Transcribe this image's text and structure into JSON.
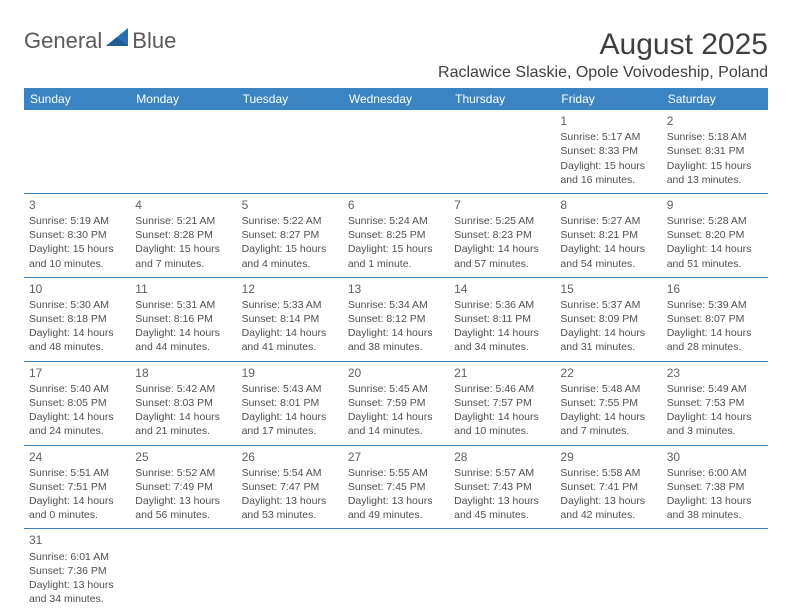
{
  "logo": {
    "part1": "General",
    "part2": "Blue"
  },
  "title": "August 2025",
  "location": "Raclawice Slaskie, Opole Voivodeship, Poland",
  "colors": {
    "header_bg": "#3b84c4",
    "header_fg": "#ffffff",
    "text": "#404040"
  },
  "weekdays": [
    "Sunday",
    "Monday",
    "Tuesday",
    "Wednesday",
    "Thursday",
    "Friday",
    "Saturday"
  ],
  "weeks": [
    [
      null,
      null,
      null,
      null,
      null,
      {
        "n": "1",
        "sr": "Sunrise: 5:17 AM",
        "ss": "Sunset: 8:33 PM",
        "d1": "Daylight: 15 hours",
        "d2": "and 16 minutes."
      },
      {
        "n": "2",
        "sr": "Sunrise: 5:18 AM",
        "ss": "Sunset: 8:31 PM",
        "d1": "Daylight: 15 hours",
        "d2": "and 13 minutes."
      }
    ],
    [
      {
        "n": "3",
        "sr": "Sunrise: 5:19 AM",
        "ss": "Sunset: 8:30 PM",
        "d1": "Daylight: 15 hours",
        "d2": "and 10 minutes."
      },
      {
        "n": "4",
        "sr": "Sunrise: 5:21 AM",
        "ss": "Sunset: 8:28 PM",
        "d1": "Daylight: 15 hours",
        "d2": "and 7 minutes."
      },
      {
        "n": "5",
        "sr": "Sunrise: 5:22 AM",
        "ss": "Sunset: 8:27 PM",
        "d1": "Daylight: 15 hours",
        "d2": "and 4 minutes."
      },
      {
        "n": "6",
        "sr": "Sunrise: 5:24 AM",
        "ss": "Sunset: 8:25 PM",
        "d1": "Daylight: 15 hours",
        "d2": "and 1 minute."
      },
      {
        "n": "7",
        "sr": "Sunrise: 5:25 AM",
        "ss": "Sunset: 8:23 PM",
        "d1": "Daylight: 14 hours",
        "d2": "and 57 minutes."
      },
      {
        "n": "8",
        "sr": "Sunrise: 5:27 AM",
        "ss": "Sunset: 8:21 PM",
        "d1": "Daylight: 14 hours",
        "d2": "and 54 minutes."
      },
      {
        "n": "9",
        "sr": "Sunrise: 5:28 AM",
        "ss": "Sunset: 8:20 PM",
        "d1": "Daylight: 14 hours",
        "d2": "and 51 minutes."
      }
    ],
    [
      {
        "n": "10",
        "sr": "Sunrise: 5:30 AM",
        "ss": "Sunset: 8:18 PM",
        "d1": "Daylight: 14 hours",
        "d2": "and 48 minutes."
      },
      {
        "n": "11",
        "sr": "Sunrise: 5:31 AM",
        "ss": "Sunset: 8:16 PM",
        "d1": "Daylight: 14 hours",
        "d2": "and 44 minutes."
      },
      {
        "n": "12",
        "sr": "Sunrise: 5:33 AM",
        "ss": "Sunset: 8:14 PM",
        "d1": "Daylight: 14 hours",
        "d2": "and 41 minutes."
      },
      {
        "n": "13",
        "sr": "Sunrise: 5:34 AM",
        "ss": "Sunset: 8:12 PM",
        "d1": "Daylight: 14 hours",
        "d2": "and 38 minutes."
      },
      {
        "n": "14",
        "sr": "Sunrise: 5:36 AM",
        "ss": "Sunset: 8:11 PM",
        "d1": "Daylight: 14 hours",
        "d2": "and 34 minutes."
      },
      {
        "n": "15",
        "sr": "Sunrise: 5:37 AM",
        "ss": "Sunset: 8:09 PM",
        "d1": "Daylight: 14 hours",
        "d2": "and 31 minutes."
      },
      {
        "n": "16",
        "sr": "Sunrise: 5:39 AM",
        "ss": "Sunset: 8:07 PM",
        "d1": "Daylight: 14 hours",
        "d2": "and 28 minutes."
      }
    ],
    [
      {
        "n": "17",
        "sr": "Sunrise: 5:40 AM",
        "ss": "Sunset: 8:05 PM",
        "d1": "Daylight: 14 hours",
        "d2": "and 24 minutes."
      },
      {
        "n": "18",
        "sr": "Sunrise: 5:42 AM",
        "ss": "Sunset: 8:03 PM",
        "d1": "Daylight: 14 hours",
        "d2": "and 21 minutes."
      },
      {
        "n": "19",
        "sr": "Sunrise: 5:43 AM",
        "ss": "Sunset: 8:01 PM",
        "d1": "Daylight: 14 hours",
        "d2": "and 17 minutes."
      },
      {
        "n": "20",
        "sr": "Sunrise: 5:45 AM",
        "ss": "Sunset: 7:59 PM",
        "d1": "Daylight: 14 hours",
        "d2": "and 14 minutes."
      },
      {
        "n": "21",
        "sr": "Sunrise: 5:46 AM",
        "ss": "Sunset: 7:57 PM",
        "d1": "Daylight: 14 hours",
        "d2": "and 10 minutes."
      },
      {
        "n": "22",
        "sr": "Sunrise: 5:48 AM",
        "ss": "Sunset: 7:55 PM",
        "d1": "Daylight: 14 hours",
        "d2": "and 7 minutes."
      },
      {
        "n": "23",
        "sr": "Sunrise: 5:49 AM",
        "ss": "Sunset: 7:53 PM",
        "d1": "Daylight: 14 hours",
        "d2": "and 3 minutes."
      }
    ],
    [
      {
        "n": "24",
        "sr": "Sunrise: 5:51 AM",
        "ss": "Sunset: 7:51 PM",
        "d1": "Daylight: 14 hours",
        "d2": "and 0 minutes."
      },
      {
        "n": "25",
        "sr": "Sunrise: 5:52 AM",
        "ss": "Sunset: 7:49 PM",
        "d1": "Daylight: 13 hours",
        "d2": "and 56 minutes."
      },
      {
        "n": "26",
        "sr": "Sunrise: 5:54 AM",
        "ss": "Sunset: 7:47 PM",
        "d1": "Daylight: 13 hours",
        "d2": "and 53 minutes."
      },
      {
        "n": "27",
        "sr": "Sunrise: 5:55 AM",
        "ss": "Sunset: 7:45 PM",
        "d1": "Daylight: 13 hours",
        "d2": "and 49 minutes."
      },
      {
        "n": "28",
        "sr": "Sunrise: 5:57 AM",
        "ss": "Sunset: 7:43 PM",
        "d1": "Daylight: 13 hours",
        "d2": "and 45 minutes."
      },
      {
        "n": "29",
        "sr": "Sunrise: 5:58 AM",
        "ss": "Sunset: 7:41 PM",
        "d1": "Daylight: 13 hours",
        "d2": "and 42 minutes."
      },
      {
        "n": "30",
        "sr": "Sunrise: 6:00 AM",
        "ss": "Sunset: 7:38 PM",
        "d1": "Daylight: 13 hours",
        "d2": "and 38 minutes."
      }
    ],
    [
      {
        "n": "31",
        "sr": "Sunrise: 6:01 AM",
        "ss": "Sunset: 7:36 PM",
        "d1": "Daylight: 13 hours",
        "d2": "and 34 minutes."
      },
      null,
      null,
      null,
      null,
      null,
      null
    ]
  ]
}
